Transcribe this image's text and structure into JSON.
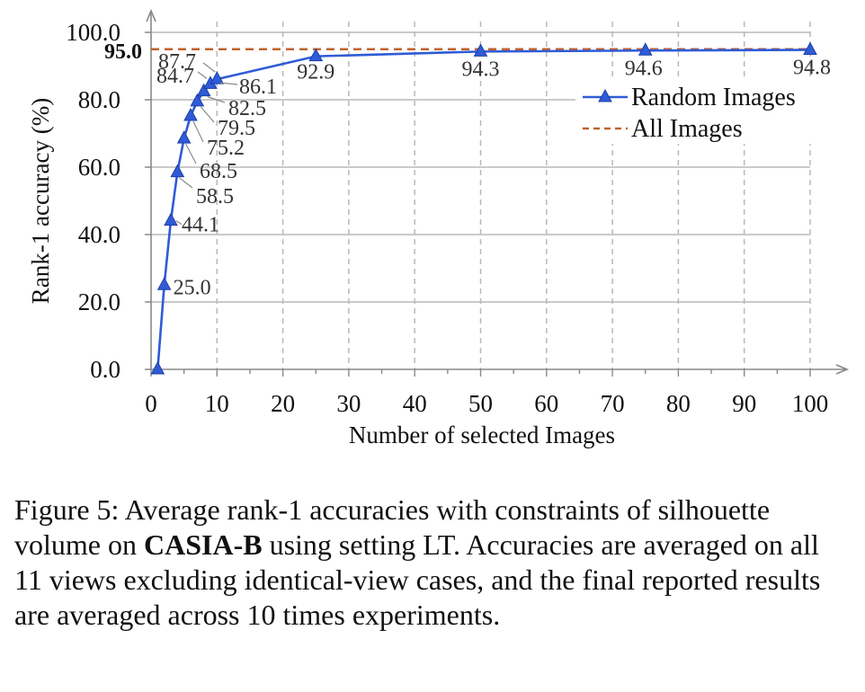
{
  "chart_data": {
    "type": "line",
    "xlabel": "Number of selected Images",
    "ylabel": "Rank-1 accuracy (%)",
    "xlim": [
      0,
      100
    ],
    "ylim": [
      0,
      100
    ],
    "x_ticks": [
      "0",
      "10",
      "20",
      "30",
      "40",
      "50",
      "60",
      "70",
      "80",
      "90",
      "100"
    ],
    "y_ticks": [
      "0.0",
      "20.0",
      "40.0",
      "60.0",
      "80.0",
      "100.0"
    ],
    "grid": true,
    "legend_position": "right",
    "series": [
      {
        "name": "Random Images",
        "style": "solid-line-triangle-markers",
        "color": "#2f5bd6",
        "x": [
          1,
          2,
          3,
          4,
          5,
          6,
          7,
          8,
          9,
          10,
          25,
          50,
          75,
          100
        ],
        "y": [
          0.0,
          25.0,
          44.1,
          58.5,
          68.5,
          75.2,
          79.5,
          82.5,
          84.7,
          86.1,
          92.9,
          94.3,
          94.6,
          94.8
        ],
        "labels": [
          "",
          "25.0",
          "44.1",
          "58.5",
          "68.5",
          "75.2",
          "79.5",
          "82.5",
          "84.7",
          "86.1",
          "92.9",
          "94.3",
          "94.6",
          "94.8"
        ]
      },
      {
        "name": "All Images",
        "style": "dashed-line",
        "color": "#c0622e",
        "y_constant": 95.0,
        "label": "95.0"
      }
    ],
    "extra_labels": [
      "87.7"
    ]
  },
  "caption": {
    "prefix": "Figure 5: Average rank-1 accuracies with constraints of silhouette volume on ",
    "bold": "CASIA-B",
    "suffix": " using setting LT. Accuracies are averaged on all 11 views excluding identical-view cases, and the final reported results are averaged across 10 times experiments."
  }
}
